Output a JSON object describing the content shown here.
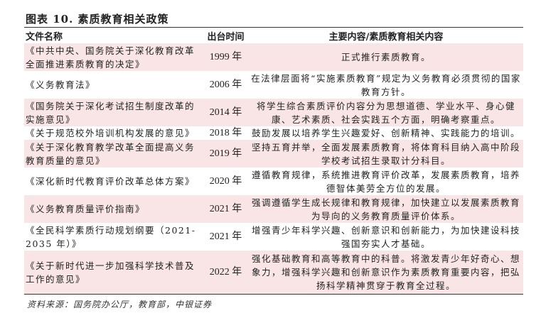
{
  "title": "图表 10. 素质教育相关政策",
  "table": {
    "headers": [
      "文件名称",
      "出台时间",
      "主要内容/素质教育相关内容"
    ],
    "rows": [
      {
        "name": "《中共中央、国务院关于深化教育改革全面推进素质教育的决定》",
        "date": "1999 年",
        "content": "正式推行素质教育。"
      },
      {
        "name": "《义务教育法》",
        "date": "2006 年",
        "content": "在法律层面将“实施素质教育”规定为义务教育必须贯彻的国家教育方针。"
      },
      {
        "name": "《国务院关于深化考试招生制度改革的实施意见》",
        "date": "2014 年",
        "content": "将学生综合素质评价内容分为思想道德、学业水平、身心健康、艺术素质、社会实践五个方面，明确考察重点。"
      },
      {
        "name": "《关于规范校外培训机构发展的意见》",
        "date": "2018 年",
        "content": "鼓励发展以培养学生兴趣爱好、创新精神、实践能力的培训。"
      },
      {
        "name": "《关于深化教育教学改革全面提高义务教育质量的意见》",
        "date": "2019 年",
        "content": "坚持五育并举，全面发展素质教育，将体育科目纳入高中阶段学校考试招生录取计分科目。"
      },
      {
        "name": "《深化新时代教育评价改革总体方案》",
        "date": "2020 年",
        "content": "遵循教育规律，系统推进教育评价改革，发展素质教育，培养德智体美劳全方位的发展。"
      },
      {
        "name": "《义务教育质量评价指南》",
        "date": "2021 年",
        "content": "强调遵循学生成长规律和教育规律，加快建立以发展素质教育为导向的义务教育质量评价体系。"
      },
      {
        "name": "《全民科学素质行动规划纲要（2021-2035 年）》",
        "date": "2021 年",
        "content": "增强青少年科学兴趣、创新意识和创新能力，为加快建设科技强国夯实人才基础。"
      },
      {
        "name": "《关于新时代进一步加强科学技术普及工作的意见》",
        "date": "2022 年",
        "content": "强化基础教育和高等教育中的科普。将激发青少年好奇心、想象力，增强科学兴趣和创新意识作为素质教育重要内容，把弘扬科学精神贯穿于教育全过程。"
      }
    ]
  },
  "source": "资料来源：国务院办公厅，教育部，中银证券",
  "colors": {
    "row_highlight": "#f9e5e6",
    "rule": "#333333"
  }
}
